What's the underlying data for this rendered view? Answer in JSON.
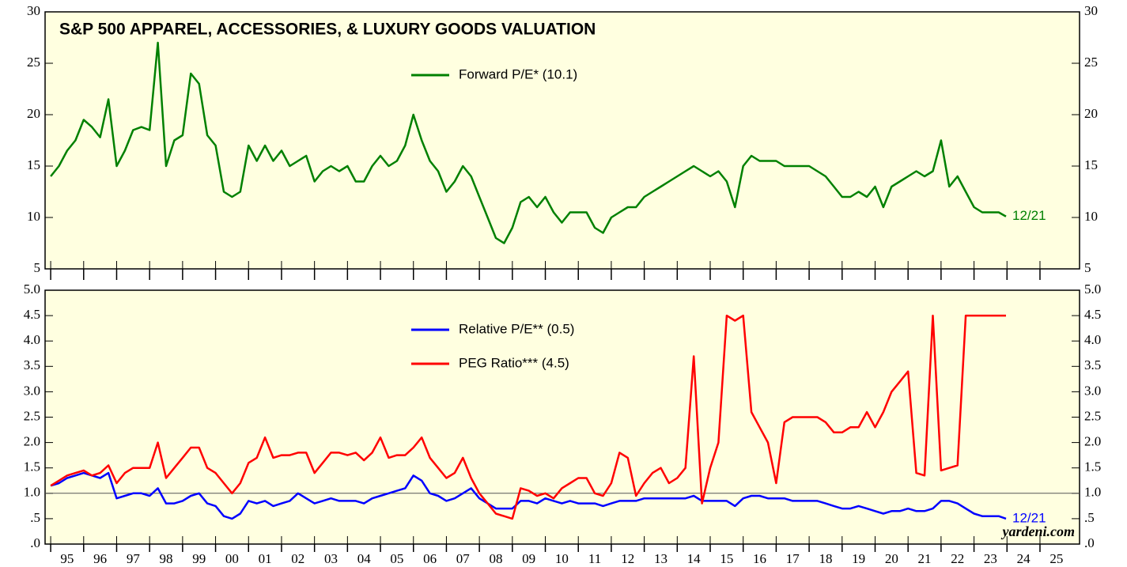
{
  "chart_data": [
    {
      "type": "line",
      "title": "S&P 500 APPAREL, ACCESSORIES, & LUXURY GOODS VALUATION",
      "x": [
        1995,
        1995.25,
        1995.5,
        1995.75,
        1996,
        1996.25,
        1996.5,
        1996.75,
        1997,
        1997.25,
        1997.5,
        1997.75,
        1998,
        1998.25,
        1998.5,
        1998.75,
        1999,
        1999.25,
        1999.5,
        1999.75,
        2000,
        2000.25,
        2000.5,
        2000.75,
        2001,
        2001.25,
        2001.5,
        2001.75,
        2002,
        2002.25,
        2002.5,
        2002.75,
        2003,
        2003.25,
        2003.5,
        2003.75,
        2004,
        2004.25,
        2004.5,
        2004.75,
        2005,
        2005.25,
        2005.5,
        2005.75,
        2006,
        2006.25,
        2006.5,
        2006.75,
        2007,
        2007.25,
        2007.5,
        2007.75,
        2008,
        2008.25,
        2008.5,
        2008.75,
        2009,
        2009.25,
        2009.5,
        2009.75,
        2010,
        2010.25,
        2010.5,
        2010.75,
        2011,
        2011.25,
        2011.5,
        2011.75,
        2012,
        2012.25,
        2012.5,
        2012.75,
        2013,
        2013.25,
        2013.5,
        2013.75,
        2014,
        2014.25,
        2014.5,
        2014.75,
        2015,
        2015.25,
        2015.5,
        2015.75,
        2016,
        2016.25,
        2016.5,
        2016.75,
        2017,
        2017.25,
        2017.5,
        2017.75,
        2018,
        2018.25,
        2018.5,
        2018.75,
        2019,
        2019.25,
        2019.5,
        2019.75,
        2020,
        2020.25,
        2020.5,
        2020.75,
        2021,
        2021.25,
        2021.5,
        2021.75,
        2022,
        2022.25,
        2022.5,
        2022.75,
        2023,
        2023.25,
        2023.5,
        2023.75,
        2023.97
      ],
      "series": [
        {
          "name": "Forward P/E* (10.1)",
          "color": "#008000",
          "values": [
            14.0,
            15.0,
            16.5,
            17.5,
            19.5,
            18.8,
            17.8,
            21.5,
            15.0,
            16.5,
            18.5,
            18.8,
            18.5,
            27.0,
            15.0,
            17.5,
            18.0,
            24.0,
            23.0,
            18.0,
            17.0,
            12.5,
            12.0,
            12.5,
            17.0,
            15.5,
            17.0,
            15.5,
            16.5,
            15.0,
            15.5,
            16.0,
            13.5,
            14.5,
            15.0,
            14.5,
            15.0,
            13.5,
            13.5,
            15.0,
            16.0,
            15.0,
            15.5,
            17.0,
            20.0,
            17.5,
            15.5,
            14.5,
            12.5,
            13.5,
            15.0,
            14.0,
            12.0,
            10.0,
            8.0,
            7.5,
            9.0,
            11.5,
            12.0,
            11.0,
            12.0,
            10.5,
            9.5,
            10.5,
            10.5,
            10.5,
            9.0,
            8.5,
            10.0,
            10.5,
            11.0,
            11.0,
            12.0,
            12.5,
            13.0,
            13.5,
            14.0,
            14.5,
            15.0,
            14.5,
            14.0,
            14.5,
            13.5,
            11.0,
            15.0,
            16.0,
            15.5,
            15.5,
            15.5,
            15.0,
            15.0,
            15.0,
            15.0,
            14.5,
            14.0,
            13.0,
            12.0,
            12.0,
            12.5,
            12.0,
            13.0,
            11.0,
            13.0,
            13.5,
            14.0,
            14.5,
            14.0,
            14.5,
            17.5,
            13.0,
            14.0,
            12.5,
            11.0,
            10.5,
            10.5,
            10.5,
            10.1
          ]
        }
      ],
      "annotations": [
        {
          "text": "12/21",
          "color": "#008000"
        }
      ],
      "ylim": [
        5,
        30
      ],
      "yticks": [
        5,
        10,
        15,
        20,
        25,
        30
      ]
    },
    {
      "type": "line",
      "x": [
        1995,
        1995.25,
        1995.5,
        1995.75,
        1996,
        1996.25,
        1996.5,
        1996.75,
        1997,
        1997.25,
        1997.5,
        1997.75,
        1998,
        1998.25,
        1998.5,
        1998.75,
        1999,
        1999.25,
        1999.5,
        1999.75,
        2000,
        2000.25,
        2000.5,
        2000.75,
        2001,
        2001.25,
        2001.5,
        2001.75,
        2002,
        2002.25,
        2002.5,
        2002.75,
        2003,
        2003.25,
        2003.5,
        2003.75,
        2004,
        2004.25,
        2004.5,
        2004.75,
        2005,
        2005.25,
        2005.5,
        2005.75,
        2006,
        2006.25,
        2006.5,
        2006.75,
        2007,
        2007.25,
        2007.5,
        2007.75,
        2008,
        2008.25,
        2008.5,
        2008.75,
        2009,
        2009.25,
        2009.5,
        2009.75,
        2010,
        2010.25,
        2010.5,
        2010.75,
        2011,
        2011.25,
        2011.5,
        2011.75,
        2012,
        2012.25,
        2012.5,
        2012.75,
        2013,
        2013.25,
        2013.5,
        2013.75,
        2014,
        2014.25,
        2014.5,
        2014.75,
        2015,
        2015.25,
        2015.5,
        2015.75,
        2016,
        2016.25,
        2016.5,
        2016.75,
        2017,
        2017.25,
        2017.5,
        2017.75,
        2018,
        2018.25,
        2018.5,
        2018.75,
        2019,
        2019.25,
        2019.5,
        2019.75,
        2020,
        2020.25,
        2020.5,
        2020.75,
        2021,
        2021.25,
        2021.5,
        2021.75,
        2022,
        2022.25,
        2022.5,
        2022.75,
        2023,
        2023.25,
        2023.5,
        2023.75,
        2023.97
      ],
      "series": [
        {
          "name": "Relative P/E** (0.5)",
          "color": "#0000ff",
          "values": [
            1.15,
            1.2,
            1.3,
            1.35,
            1.4,
            1.35,
            1.3,
            1.4,
            0.9,
            0.95,
            1.0,
            1.0,
            0.95,
            1.1,
            0.8,
            0.8,
            0.85,
            0.95,
            1.0,
            0.8,
            0.75,
            0.55,
            0.5,
            0.6,
            0.85,
            0.8,
            0.85,
            0.75,
            0.8,
            0.85,
            1.0,
            0.9,
            0.8,
            0.85,
            0.9,
            0.85,
            0.85,
            0.85,
            0.8,
            0.9,
            0.95,
            1.0,
            1.05,
            1.1,
            1.35,
            1.25,
            1.0,
            0.95,
            0.85,
            0.9,
            1.0,
            1.1,
            0.9,
            0.8,
            0.7,
            0.7,
            0.7,
            0.85,
            0.85,
            0.8,
            0.9,
            0.85,
            0.8,
            0.85,
            0.8,
            0.8,
            0.8,
            0.75,
            0.8,
            0.85,
            0.85,
            0.85,
            0.9,
            0.9,
            0.9,
            0.9,
            0.9,
            0.9,
            0.95,
            0.85,
            0.85,
            0.85,
            0.85,
            0.75,
            0.9,
            0.95,
            0.95,
            0.9,
            0.9,
            0.9,
            0.85,
            0.85,
            0.85,
            0.85,
            0.8,
            0.75,
            0.7,
            0.7,
            0.75,
            0.7,
            0.65,
            0.6,
            0.65,
            0.65,
            0.7,
            0.65,
            0.65,
            0.7,
            0.85,
            0.85,
            0.8,
            0.7,
            0.6,
            0.55,
            0.55,
            0.55,
            0.5
          ]
        },
        {
          "name": "PEG Ratio*** (4.5)",
          "color": "#ff0000",
          "values": [
            1.15,
            1.25,
            1.35,
            1.4,
            1.45,
            1.35,
            1.4,
            1.55,
            1.2,
            1.4,
            1.5,
            1.5,
            1.5,
            2.0,
            1.3,
            1.5,
            1.7,
            1.9,
            1.9,
            1.5,
            1.4,
            1.2,
            1.0,
            1.2,
            1.6,
            1.7,
            2.1,
            1.7,
            1.75,
            1.75,
            1.8,
            1.8,
            1.4,
            1.6,
            1.8,
            1.8,
            1.75,
            1.8,
            1.65,
            1.8,
            2.1,
            1.7,
            1.75,
            1.75,
            1.9,
            2.1,
            1.7,
            1.5,
            1.3,
            1.4,
            1.7,
            1.3,
            1.0,
            0.8,
            0.6,
            0.55,
            0.5,
            1.1,
            1.05,
            0.95,
            1.0,
            0.9,
            1.1,
            1.2,
            1.3,
            1.3,
            1.0,
            0.95,
            1.2,
            1.8,
            1.7,
            0.95,
            1.2,
            1.4,
            1.5,
            1.2,
            1.3,
            1.5,
            3.7,
            0.8,
            1.5,
            2.0,
            4.5,
            4.4,
            4.5,
            2.6,
            2.3,
            2.0,
            1.2,
            2.4,
            2.5,
            2.5,
            2.5,
            2.5,
            2.4,
            2.2,
            2.2,
            2.3,
            2.3,
            2.6,
            2.3,
            2.6,
            3.0,
            3.2,
            3.4,
            1.4,
            1.35,
            4.5,
            1.45,
            1.5,
            1.55,
            4.5,
            4.5,
            4.5,
            4.5,
            4.5,
            4.5
          ]
        }
      ],
      "annotations": [
        {
          "text": "12/21",
          "color": "#0000ff"
        },
        {
          "text": "yardeni.com",
          "color": "#000000"
        }
      ],
      "hline": 1,
      "ylim": [
        0,
        5
      ],
      "yticks": [
        {
          "value": 0,
          "label": ".0"
        },
        {
          "value": 0.5,
          "label": ".5"
        },
        {
          "value": 1,
          "label": "1.0"
        },
        {
          "value": 1.5,
          "label": "1.5"
        },
        {
          "value": 2,
          "label": "2.0"
        },
        {
          "value": 2.5,
          "label": "2.5"
        },
        {
          "value": 3,
          "label": "3.0"
        },
        {
          "value": 3.5,
          "label": "3.5"
        },
        {
          "value": 4,
          "label": "4.0"
        },
        {
          "value": 4.5,
          "label": "4.5"
        },
        {
          "value": 5,
          "label": "5.0"
        }
      ],
      "xlim": [
        1994.83,
        2026.2
      ],
      "xticks": [
        {
          "value": 1995.5,
          "label": "95"
        },
        {
          "value": 1996.5,
          "label": "96"
        },
        {
          "value": 1997.5,
          "label": "97"
        },
        {
          "value": 1998.5,
          "label": "98"
        },
        {
          "value": 1999.5,
          "label": "99"
        },
        {
          "value": 2000.5,
          "label": "00"
        },
        {
          "value": 2001.5,
          "label": "01"
        },
        {
          "value": 2002.5,
          "label": "02"
        },
        {
          "value": 2003.5,
          "label": "03"
        },
        {
          "value": 2004.5,
          "label": "04"
        },
        {
          "value": 2005.5,
          "label": "05"
        },
        {
          "value": 2006.5,
          "label": "06"
        },
        {
          "value": 2007.5,
          "label": "07"
        },
        {
          "value": 2008.5,
          "label": "08"
        },
        {
          "value": 2009.5,
          "label": "09"
        },
        {
          "value": 2010.5,
          "label": "10"
        },
        {
          "value": 2011.5,
          "label": "11"
        },
        {
          "value": 2012.5,
          "label": "12"
        },
        {
          "value": 2013.5,
          "label": "13"
        },
        {
          "value": 2014.5,
          "label": "14"
        },
        {
          "value": 2015.5,
          "label": "15"
        },
        {
          "value": 2016.5,
          "label": "16"
        },
        {
          "value": 2017.5,
          "label": "17"
        },
        {
          "value": 2018.5,
          "label": "18"
        },
        {
          "value": 2019.5,
          "label": "19"
        },
        {
          "value": 2020.5,
          "label": "20"
        },
        {
          "value": 2021.5,
          "label": "21"
        },
        {
          "value": 2022.5,
          "label": "22"
        },
        {
          "value": 2023.5,
          "label": "23"
        },
        {
          "value": 2024.5,
          "label": "24"
        },
        {
          "value": 2025.5,
          "label": "25"
        }
      ]
    }
  ]
}
